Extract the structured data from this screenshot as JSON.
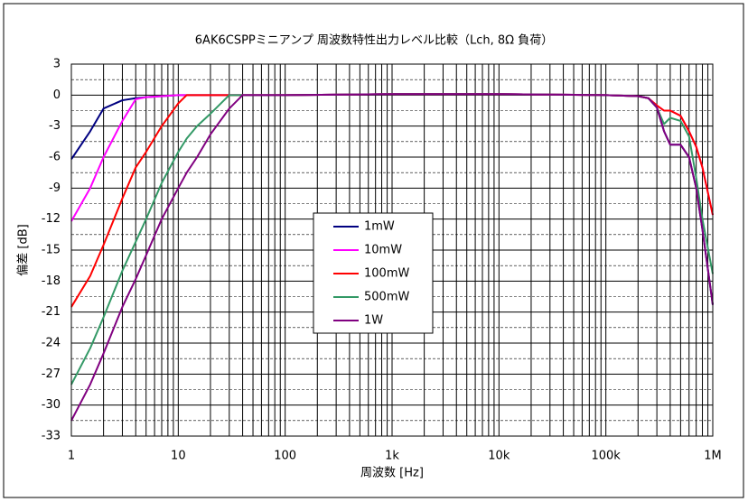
{
  "chart_data": {
    "type": "line",
    "title": "6AK6CSPPミニアンプ 周波数特性出力レベル比較（Lch, 8Ω 負荷）",
    "x_label": "周波数 [Hz]",
    "y_label": "偏差 [dB]",
    "x": [
      1,
      1.5,
      2,
      3,
      4,
      5,
      7,
      10,
      12,
      15,
      20,
      30,
      40,
      100,
      1000,
      10000,
      100000,
      200000,
      250000,
      300000,
      350000,
      400000,
      500000,
      600000,
      700000,
      800000,
      1000000
    ],
    "series": [
      {
        "name": "1mW",
        "color": "#000080",
        "values": [
          -6.2,
          -3.5,
          -1.3,
          -0.5,
          -0.3,
          -0.2,
          -0.1,
          0,
          0,
          0,
          0,
          0,
          0,
          0,
          0.1,
          0.1,
          0,
          -0.1,
          -0.3,
          -1.2,
          -3.5,
          -4.8,
          -4.8,
          -6,
          -9,
          -13,
          -20.3
        ]
      },
      {
        "name": "10mW",
        "color": "#ff00ff",
        "values": [
          -12.2,
          -9,
          -6,
          -2.5,
          -0.4,
          -0.2,
          -0.1,
          0,
          0,
          0,
          0,
          0,
          0,
          0,
          0.1,
          0.1,
          0,
          -0.1,
          -0.3,
          -1,
          -1.5,
          -1.5,
          -2,
          -3.5,
          -5,
          -7,
          -11.6
        ]
      },
      {
        "name": "100mW",
        "color": "#ff0000",
        "values": [
          -20.5,
          -17.5,
          -14.5,
          -10,
          -7,
          -5.5,
          -3,
          -0.8,
          0,
          0,
          0,
          0,
          0,
          0,
          0.1,
          0.1,
          0,
          -0.1,
          -0.3,
          -1,
          -1.5,
          -1.5,
          -2,
          -3.5,
          -5,
          -7,
          -11.6
        ]
      },
      {
        "name": "500mW",
        "color": "#339966",
        "values": [
          -28,
          -24.5,
          -21.5,
          -17,
          -14.2,
          -12,
          -8.5,
          -5.5,
          -4.2,
          -3,
          -1.8,
          0,
          0,
          0,
          0.1,
          0.1,
          0,
          -0.1,
          -0.3,
          -1.2,
          -2.8,
          -2.2,
          -2.5,
          -4,
          -8,
          -12,
          -17.3
        ]
      },
      {
        "name": "1W",
        "color": "#800080",
        "values": [
          -31.5,
          -28,
          -25,
          -20.5,
          -17.8,
          -15.5,
          -12,
          -9,
          -7.5,
          -6,
          -3.8,
          -1.3,
          0,
          0,
          0.1,
          0.1,
          0,
          -0.1,
          -0.3,
          -1.2,
          -3.5,
          -4.8,
          -4.8,
          -6,
          -9,
          -13,
          -20.3
        ]
      }
    ],
    "xscale": "log",
    "xlim": [
      1,
      1000000
    ],
    "xticks": [
      1,
      10,
      100,
      {
        "value": 1000,
        "label": "1k"
      },
      {
        "value": 10000,
        "label": "10k"
      },
      {
        "value": 100000,
        "label": "100k"
      },
      {
        "value": 1000000,
        "label": "1M"
      }
    ],
    "ylim": [
      -33,
      3
    ],
    "yticks": [
      3,
      0,
      -3,
      -6,
      -9,
      -12,
      -15,
      -18,
      -21,
      -24,
      -27,
      -30,
      -33
    ],
    "grid": true,
    "legend": "center"
  }
}
